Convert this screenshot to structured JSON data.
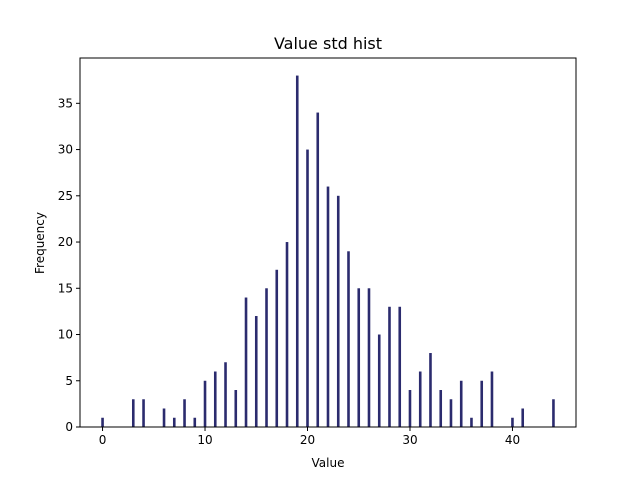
{
  "chart_data": {
    "type": "bar",
    "title": "Value std hist",
    "xlabel": "Value",
    "ylabel": "Frequency",
    "xlim": [
      -2.2,
      46.2
    ],
    "ylim": [
      0,
      39.9
    ],
    "x_ticks": [
      0,
      10,
      20,
      30,
      40
    ],
    "y_ticks": [
      0,
      5,
      10,
      15,
      20,
      25,
      30,
      35
    ],
    "grid": false,
    "legend": "none",
    "bar_color": "#2b2b6e",
    "bins": [
      {
        "x": 0,
        "value": 1
      },
      {
        "x": 3,
        "value": 3
      },
      {
        "x": 4,
        "value": 3
      },
      {
        "x": 6,
        "value": 2
      },
      {
        "x": 7,
        "value": 1
      },
      {
        "x": 8,
        "value": 3
      },
      {
        "x": 9,
        "value": 1
      },
      {
        "x": 10,
        "value": 5
      },
      {
        "x": 11,
        "value": 6
      },
      {
        "x": 12,
        "value": 7
      },
      {
        "x": 13,
        "value": 4
      },
      {
        "x": 14,
        "value": 14
      },
      {
        "x": 15,
        "value": 12
      },
      {
        "x": 16,
        "value": 15
      },
      {
        "x": 17,
        "value": 17
      },
      {
        "x": 18,
        "value": 20
      },
      {
        "x": 19,
        "value": 38
      },
      {
        "x": 20,
        "value": 30
      },
      {
        "x": 21,
        "value": 34
      },
      {
        "x": 22,
        "value": 26
      },
      {
        "x": 23,
        "value": 25
      },
      {
        "x": 24,
        "value": 19
      },
      {
        "x": 25,
        "value": 15
      },
      {
        "x": 26,
        "value": 15
      },
      {
        "x": 27,
        "value": 10
      },
      {
        "x": 28,
        "value": 13
      },
      {
        "x": 29,
        "value": 13
      },
      {
        "x": 30,
        "value": 4
      },
      {
        "x": 31,
        "value": 6
      },
      {
        "x": 32,
        "value": 8
      },
      {
        "x": 33,
        "value": 4
      },
      {
        "x": 34,
        "value": 3
      },
      {
        "x": 35,
        "value": 5
      },
      {
        "x": 36,
        "value": 1
      },
      {
        "x": 37,
        "value": 5
      },
      {
        "x": 38,
        "value": 6
      },
      {
        "x": 40,
        "value": 1
      },
      {
        "x": 41,
        "value": 2
      },
      {
        "x": 44,
        "value": 3
      }
    ]
  }
}
